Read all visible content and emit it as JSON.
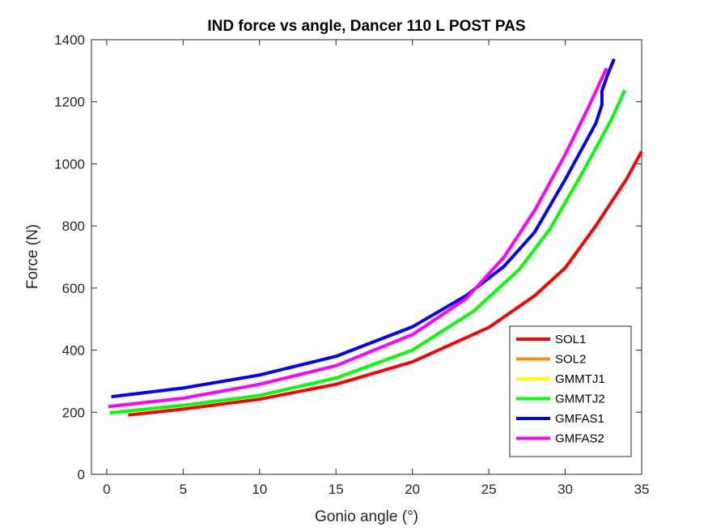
{
  "chart_data": {
    "type": "line",
    "title": "IND force vs angle, Dancer 110 L POST PAS",
    "xlabel": "Gonio angle (°)",
    "ylabel": "Force (N)",
    "xlim": [
      -1,
      35
    ],
    "ylim": [
      0,
      1400
    ],
    "xticks": [
      0,
      5,
      10,
      15,
      20,
      25,
      30,
      35
    ],
    "yticks": [
      0,
      200,
      400,
      600,
      800,
      1000,
      1200,
      1400
    ],
    "grid": false,
    "legend_position": "bottom-right",
    "series": [
      {
        "name": "SOL1",
        "color": "#ff0000",
        "x": [
          1.4,
          5,
          10,
          15,
          20,
          25,
          28,
          30,
          32,
          34,
          35
        ],
        "y": [
          191,
          210,
          242,
          290,
          362,
          473,
          575,
          665,
          800,
          950,
          1040
        ]
      },
      {
        "name": "SOL2",
        "color": "#ff8c00",
        "x": [],
        "y": []
      },
      {
        "name": "GMMTJ1",
        "color": "#ffff00",
        "x": [],
        "y": []
      },
      {
        "name": "GMMTJ2",
        "color": "#00ff00",
        "x": [
          0.2,
          5,
          10,
          15,
          20,
          24,
          27,
          29,
          31,
          33,
          33.9
        ],
        "y": [
          198,
          222,
          254,
          310,
          400,
          525,
          660,
          790,
          960,
          1140,
          1237
        ]
      },
      {
        "name": "GMFAS1",
        "color": "#0000ff",
        "x": [
          0.3,
          5,
          10,
          15,
          20,
          23.5,
          26,
          28,
          30,
          32,
          32.4,
          32.4,
          32.8,
          33.2
        ],
        "y": [
          250,
          278,
          320,
          380,
          475,
          575,
          670,
          780,
          950,
          1130,
          1190,
          1235,
          1290,
          1338
        ]
      },
      {
        "name": "GMFAS2",
        "color": "#ff00ff",
        "x": [
          0.1,
          5,
          10,
          15,
          20,
          23.5,
          26,
          28,
          30,
          31.5,
          32.7
        ],
        "y": [
          218,
          245,
          290,
          350,
          450,
          565,
          700,
          850,
          1030,
          1180,
          1308
        ]
      }
    ]
  }
}
